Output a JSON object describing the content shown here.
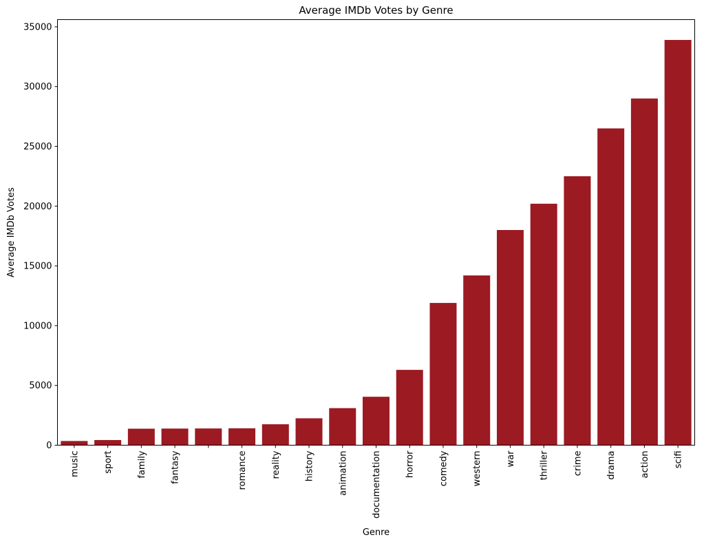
{
  "chart_data": {
    "type": "bar",
    "title": "Average IMDb Votes by Genre",
    "xlabel": "Genre",
    "ylabel": "Average IMDb Votes",
    "categories": [
      "music",
      "sport",
      "family",
      "fantasy",
      "",
      "romance",
      "reality",
      "history",
      "animation",
      "documentation",
      "horror",
      "comedy",
      "western",
      "war",
      "thriller",
      "crime",
      "drama",
      "action",
      "scifi"
    ],
    "values": [
      350,
      430,
      1380,
      1390,
      1400,
      1410,
      1750,
      2250,
      3100,
      4050,
      6300,
      11900,
      14200,
      18000,
      20200,
      22500,
      26500,
      29000,
      33900
    ],
    "ylim": [
      0,
      35600
    ],
    "yticks": [
      0,
      5000,
      10000,
      15000,
      20000,
      25000,
      30000,
      35000
    ],
    "bar_color": "#9c1a22",
    "grid": false,
    "legend": "none"
  }
}
